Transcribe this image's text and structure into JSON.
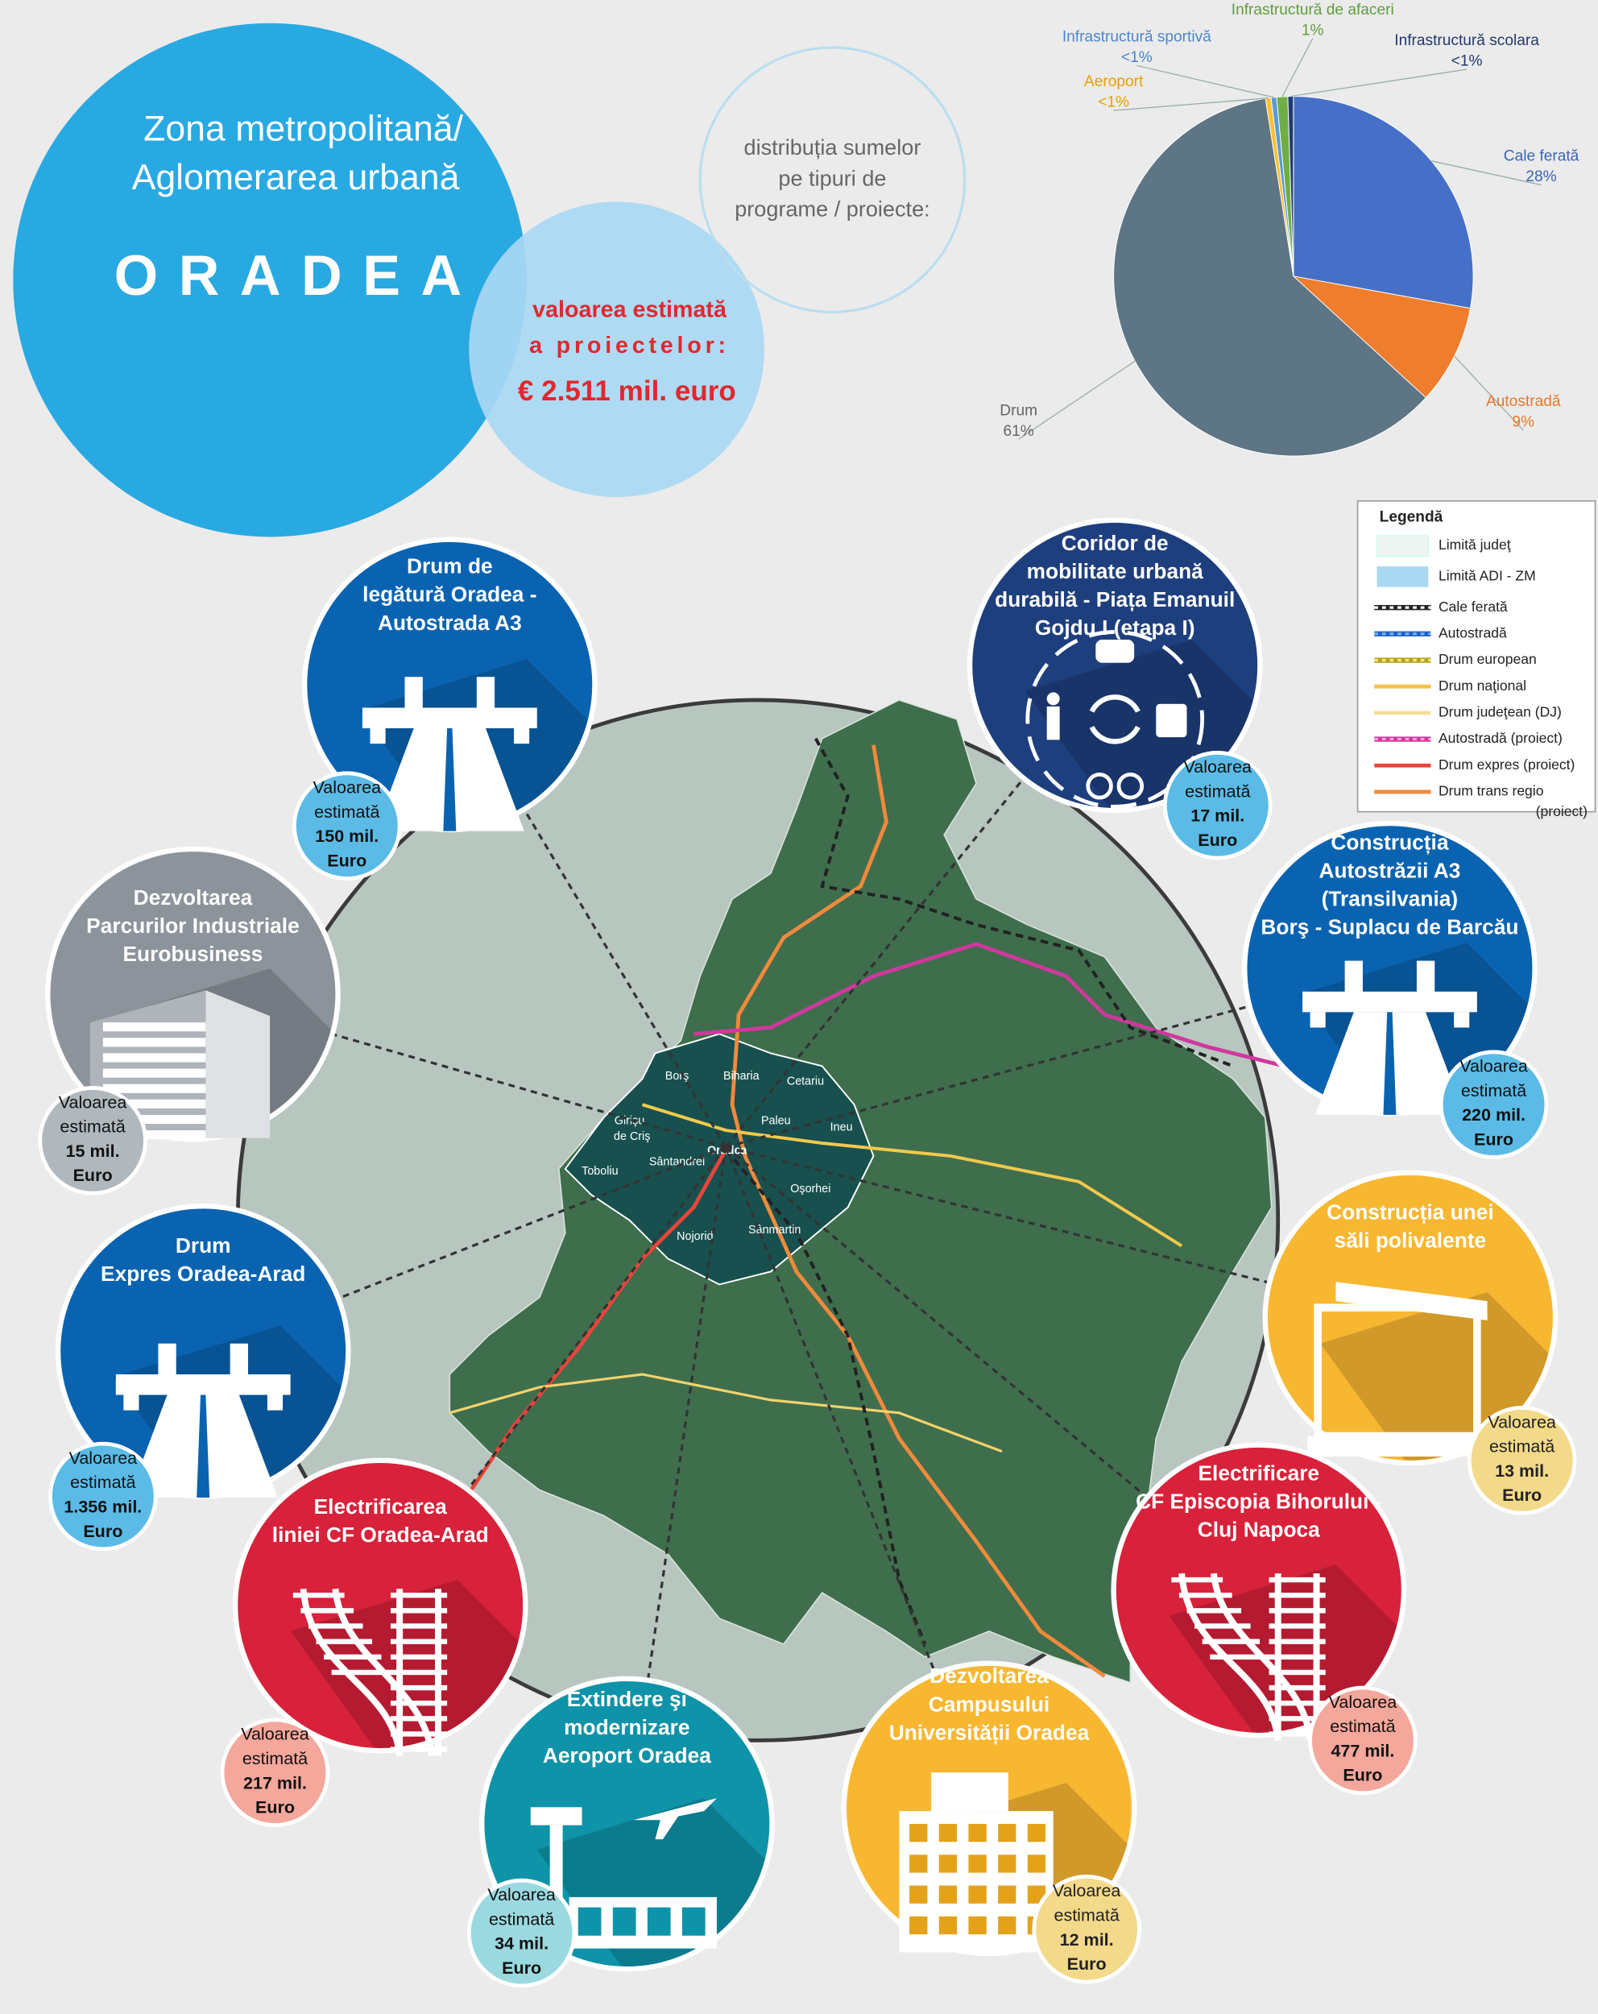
{
  "header": {
    "title_lines": [
      "Zona metropolitană/",
      "Aglomerarea urbană"
    ],
    "city": "ORADEA"
  },
  "estimate": {
    "lines": [
      "valoarea estimată",
      "a  proiectelor:"
    ],
    "total": "€ 2.511 mil. euro"
  },
  "distribution": [
    "distribuția sumelor",
    "pe tipuri de",
    "programe / proiecte:"
  ],
  "chart_data": {
    "type": "pie",
    "categories": [
      "Cale ferată",
      "Autostradă",
      "Drum",
      "Aeroport",
      "Infrastructură sportivă",
      "Infrastructură de afaceri",
      "Infrastructură scolara"
    ],
    "values": [
      28,
      9,
      61,
      0.5,
      0.5,
      1,
      0.5
    ],
    "value_labels": [
      "28%",
      "9%",
      "61%",
      "<1%",
      "<1%",
      "1%",
      "<1%"
    ],
    "colors": [
      "#4670c8",
      "#ee7d2e",
      "#5d7584",
      "#fdc02f",
      "#5b9bd5",
      "#70ad47",
      "#1f3b73"
    ]
  },
  "legend": {
    "title": "Legendă",
    "items": [
      [
        "Limită judeţ"
      ],
      [
        "Limită ADI - ZM"
      ],
      [
        "Cale ferată"
      ],
      [
        "Autostradă"
      ],
      [
        "Drum european"
      ],
      [
        "Drum naţional"
      ],
      [
        "Drum judeţean (DJ)"
      ],
      [
        "Autostradă (proiect)"
      ],
      [
        "Drum expres (proiect)"
      ],
      [
        "Drum trans regio",
        "(proiect)"
      ]
    ]
  },
  "map_labels": [
    "Borş",
    "Biharia",
    "Cetariu",
    "Paleu",
    "Ineu",
    "Girişu",
    "de Criş",
    "Oradea",
    "Sântandrei",
    "Toboliu",
    "Oşorhei",
    "Nojorid",
    "Sânmartin"
  ],
  "projects": [
    {
      "title": [
        "Drum de",
        "legătură Oradea -",
        "Autostrada A3"
      ],
      "estimate": [
        "Valoarea",
        "estimată",
        "150 mil.",
        "Euro"
      ]
    },
    {
      "title": [
        "Coridor de",
        "mobilitate urbană",
        "durabilă - Piața Emanuil",
        "Gojdu I (etapa I)"
      ],
      "estimate": [
        "Valoarea",
        "estimată",
        "17 mil.",
        "Euro"
      ]
    },
    {
      "title": [
        "Construcția",
        "Autostrăzii A3",
        "(Transilvania)",
        "Borş - Suplacu de Barcău"
      ],
      "estimate": [
        "Valoarea",
        "estimată",
        "220 mil.",
        "Euro"
      ]
    },
    {
      "title": [
        "Construcția unei",
        "săli polivalente"
      ],
      "estimate": [
        "Valoarea",
        "estimată",
        "13 mil.",
        "Euro"
      ]
    },
    {
      "title": [
        "Electrificare",
        "CF Episcopia Bihorului -",
        "Cluj Napoca"
      ],
      "estimate": [
        "Valoarea",
        "estimată",
        "477 mil.",
        "Euro"
      ]
    },
    {
      "title": [
        "Dezvoltarea",
        "Campusului",
        "Universității Oradea"
      ],
      "estimate": [
        "Valoarea",
        "estimată",
        "12 mil.",
        "Euro"
      ]
    },
    {
      "title": [
        "Extindere şi",
        "modernizare",
        "Aeroport Oradea"
      ],
      "estimate": [
        "Valoarea",
        "estimată",
        "34 mil.",
        "Euro"
      ]
    },
    {
      "title": [
        "Electrificarea",
        "liniei CF Oradea-Arad"
      ],
      "estimate": [
        "Valoarea",
        "estimată",
        "217 mil.",
        "Euro"
      ]
    },
    {
      "title": [
        "Drum",
        "Expres Oradea-Arad"
      ],
      "estimate": [
        "Valoarea",
        "estimată",
        "1.356 mil.",
        "Euro"
      ]
    },
    {
      "title": [
        "Dezvoltarea",
        "Parcurilor Industriale",
        "Eurobusiness"
      ],
      "estimate": [
        "Valoarea",
        "estimată",
        "15 mil.",
        "Euro"
      ]
    }
  ]
}
